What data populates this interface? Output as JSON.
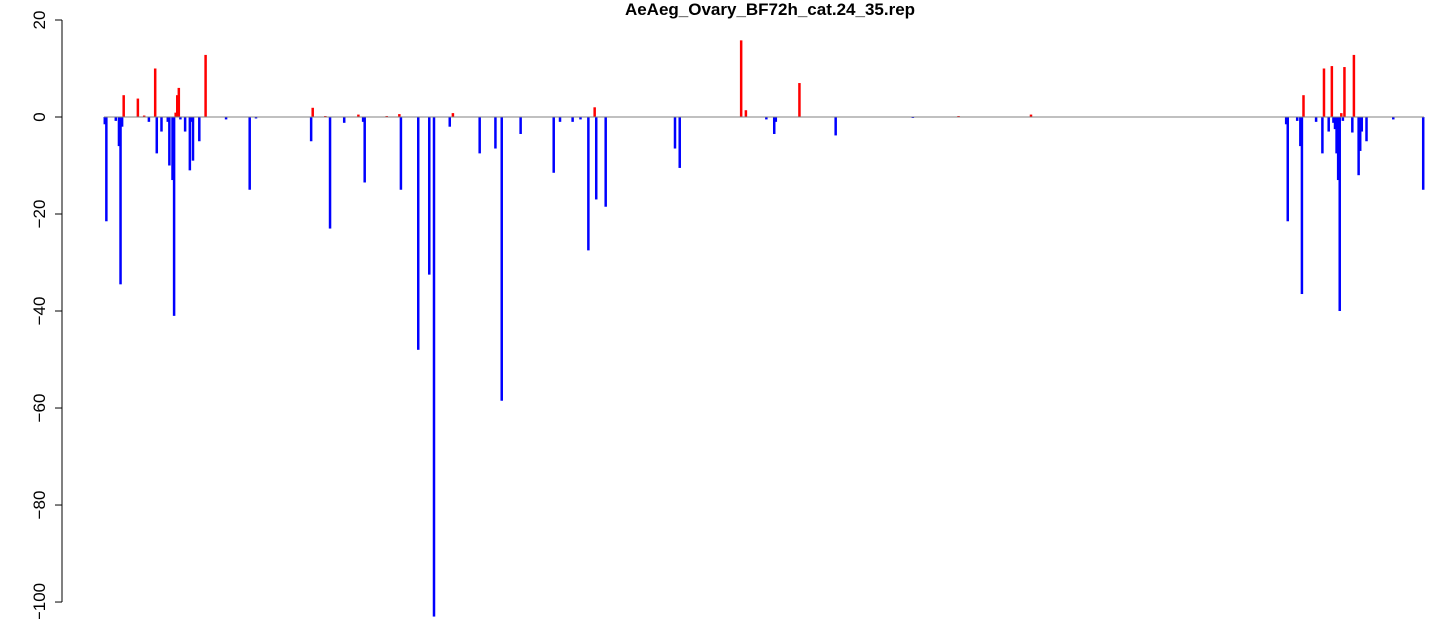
{
  "chart_data": {
    "type": "bar",
    "title": "AeAeg_Ovary_BF72h_cat.24_35.rep",
    "xlabel": "",
    "ylabel": "",
    "ylim": [
      -103.5,
      20
    ],
    "yticks": [
      20,
      0,
      -20,
      -40,
      -60,
      -80,
      -100
    ],
    "colors": {
      "positive": "#ff0000",
      "negative": "#0000ff",
      "baseline": "#808080"
    },
    "grid": false,
    "legend": "none",
    "values": [
      -1.5,
      -21.5,
      0,
      0,
      0,
      0,
      0,
      -0.8,
      0,
      -6,
      -34.5,
      -2,
      4.5,
      0,
      0,
      0,
      0,
      0,
      0,
      0,
      0,
      3.8,
      0,
      0,
      0,
      0.3,
      0,
      0,
      -1,
      0,
      0,
      0,
      10,
      -7.5,
      0,
      0,
      -3,
      0,
      0,
      0,
      -1,
      -10,
      0,
      -13,
      -41,
      0.9,
      4.5,
      6,
      -0.5,
      0,
      0,
      -3,
      0,
      0,
      -11,
      -1,
      -9,
      0,
      0,
      0,
      -5,
      0,
      0,
      0,
      12.8,
      0,
      0,
      0,
      0,
      0,
      0,
      0,
      0,
      0,
      0,
      0,
      0,
      -0.5,
      0,
      0,
      0,
      0,
      0,
      0,
      0,
      0,
      0,
      0,
      0,
      0,
      0,
      0,
      -15,
      0,
      0,
      0,
      -0.3,
      0,
      0,
      0,
      0,
      0,
      0,
      0,
      0,
      0,
      0,
      0,
      0,
      0,
      0,
      0,
      0,
      0,
      0,
      0,
      0,
      0,
      0,
      0,
      0,
      0,
      0,
      0,
      0,
      0,
      0,
      0,
      0,
      0,
      0,
      -5,
      1.9,
      0,
      0,
      0,
      0,
      0,
      0,
      0,
      0.2,
      0,
      0,
      -23,
      0,
      0,
      0,
      0,
      0,
      0,
      0,
      0,
      -1.2,
      0,
      0,
      0,
      0,
      0,
      0,
      0,
      0,
      0.5,
      0,
      0,
      -1,
      -13.5,
      0,
      0,
      0,
      0,
      0,
      0,
      0,
      0,
      0,
      0,
      0,
      0,
      0,
      0.2,
      0,
      0,
      0,
      0,
      0,
      0,
      0,
      0.6,
      -15,
      0,
      0,
      0,
      0,
      0,
      0,
      0,
      0,
      0,
      0,
      -48,
      0,
      0,
      0,
      0,
      0,
      0,
      -32.5,
      0,
      0,
      -103,
      0,
      0,
      0,
      0,
      0,
      0,
      0,
      0,
      0,
      -2,
      0,
      0.8,
      0,
      0,
      0,
      0,
      0,
      0,
      0,
      0,
      0,
      0,
      0,
      0,
      0,
      0,
      0,
      0,
      -7.5,
      0,
      0,
      0,
      0,
      0,
      0,
      0,
      0,
      0,
      -6.5,
      0,
      0,
      0,
      -58.5,
      0,
      0,
      0,
      0,
      0,
      0,
      0,
      0,
      0,
      0,
      0,
      -3.5,
      0,
      0,
      0,
      0,
      0,
      0,
      0,
      0,
      0,
      0,
      0,
      0,
      0,
      0,
      0,
      0,
      0,
      0,
      0,
      0,
      -11.5,
      0,
      0,
      0,
      -1,
      0,
      0,
      0,
      0,
      0,
      0,
      0,
      -1,
      0,
      0,
      0,
      0,
      -0.5,
      0,
      0,
      0,
      0,
      -27.5,
      0,
      0,
      0,
      2,
      -17,
      0,
      0,
      0,
      0,
      0,
      -18.5,
      0,
      0,
      0,
      0,
      0,
      0,
      0,
      0,
      0,
      0,
      0,
      0,
      0,
      0,
      0,
      0,
      0,
      0,
      0,
      0,
      0,
      0,
      0,
      0,
      0,
      0,
      0,
      0,
      0,
      0,
      0,
      0,
      0,
      0,
      0,
      0,
      0,
      0,
      0,
      0,
      0,
      0,
      0,
      -6.5,
      0,
      0,
      -10.5,
      0,
      0,
      0,
      0,
      0,
      0,
      0,
      0,
      0,
      0,
      0,
      0,
      0,
      0,
      0,
      0,
      0,
      0,
      0,
      0,
      0,
      0,
      0,
      0,
      0,
      0,
      0,
      0,
      0,
      0,
      0,
      0,
      0,
      0,
      0,
      0,
      0,
      0,
      15.8,
      0,
      0,
      1.4,
      0,
      0,
      0,
      0,
      0,
      0,
      0,
      0,
      0,
      0,
      0,
      0,
      -0.5,
      0,
      0,
      0,
      0,
      -3.5,
      -1,
      0,
      0,
      0,
      0,
      0,
      0,
      0,
      0,
      0,
      0,
      0,
      0,
      0,
      0,
      7,
      0,
      0,
      0,
      0,
      0,
      0,
      0,
      0,
      0,
      0,
      0,
      0,
      0,
      0,
      0,
      0,
      0,
      0,
      0,
      0,
      0,
      0,
      -3.8,
      0,
      0,
      0,
      0,
      0,
      0,
      0,
      0,
      0,
      0,
      0,
      0,
      0,
      0,
      0,
      0,
      0,
      0,
      0,
      0,
      0,
      0,
      0,
      0,
      0,
      0,
      0,
      0,
      0,
      0,
      0,
      0,
      0,
      0,
      0,
      0,
      0,
      0,
      0,
      0,
      0,
      0,
      0,
      0,
      0,
      0,
      0,
      0,
      -0.2,
      0,
      0,
      0,
      0,
      0,
      0,
      0,
      0,
      0,
      0,
      0,
      0,
      0,
      0,
      0,
      0,
      0,
      0,
      0,
      0,
      0,
      0,
      0,
      0,
      0,
      0,
      0,
      0,
      0.2,
      0,
      0,
      0,
      0,
      0,
      0,
      0,
      0,
      0,
      0,
      0,
      0,
      0,
      0,
      0,
      0,
      0,
      0,
      0,
      0,
      0,
      0,
      0,
      0,
      0,
      0,
      0,
      0,
      0,
      0,
      0,
      0,
      0,
      0,
      0,
      0,
      0,
      0,
      0,
      0,
      0,
      0,
      0,
      0,
      0,
      0.5,
      0,
      0,
      0,
      0,
      0,
      0,
      0,
      0,
      0,
      0,
      0,
      0,
      0,
      0,
      0,
      0,
      0,
      0,
      0,
      0,
      0,
      0,
      0,
      0,
      0,
      0,
      0,
      0,
      0,
      0,
      0,
      0,
      0,
      0,
      0,
      0,
      0,
      0,
      0,
      0,
      0,
      0,
      0,
      0,
      0,
      0,
      0,
      0,
      0,
      0,
      0,
      0,
      0,
      0,
      0,
      0,
      0,
      0,
      0,
      0,
      0,
      0,
      0,
      0,
      0,
      0,
      0,
      0,
      0,
      0,
      0,
      0,
      0,
      0,
      0,
      0,
      0,
      0,
      0,
      0,
      0,
      0,
      0,
      0,
      0,
      0,
      0,
      0,
      0,
      0,
      0,
      0,
      0,
      0,
      0,
      0,
      0,
      0,
      0,
      0,
      0,
      0,
      0,
      0,
      0,
      0,
      0,
      0,
      0,
      0,
      0,
      0,
      0,
      0,
      0,
      0,
      0,
      0,
      0,
      0,
      0,
      0,
      0,
      0,
      0,
      0,
      0,
      0,
      0,
      0,
      0,
      0,
      0,
      0,
      0,
      0,
      0,
      0,
      0,
      0,
      0,
      0,
      0,
      0,
      0,
      0,
      0,
      0,
      0,
      0,
      0,
      0,
      0,
      0,
      0,
      0,
      0,
      0,
      0,
      0,
      0,
      -1.5,
      -21.5,
      0,
      0,
      0,
      0,
      0,
      -0.8,
      0,
      -6,
      -36.5,
      4.5,
      0,
      0,
      0,
      0,
      0,
      0,
      0,
      -1,
      0,
      0,
      0,
      -7.5,
      10,
      0,
      0,
      -3,
      0,
      10.5,
      -1.2,
      -2.5,
      -7.5,
      -13,
      -40,
      0.8,
      -0.8,
      10.3,
      0,
      0,
      0,
      0,
      -3.2,
      12.8,
      0,
      0,
      -12,
      -7,
      -3,
      0,
      0,
      -5,
      0,
      0,
      0,
      0,
      0,
      0,
      0,
      0,
      0,
      0,
      0,
      0,
      0,
      0,
      0,
      0,
      -0.5,
      0,
      0,
      0,
      0,
      0,
      0,
      0,
      0,
      0,
      0,
      0,
      0,
      0,
      0,
      0,
      0,
      0,
      0,
      -15
    ]
  }
}
